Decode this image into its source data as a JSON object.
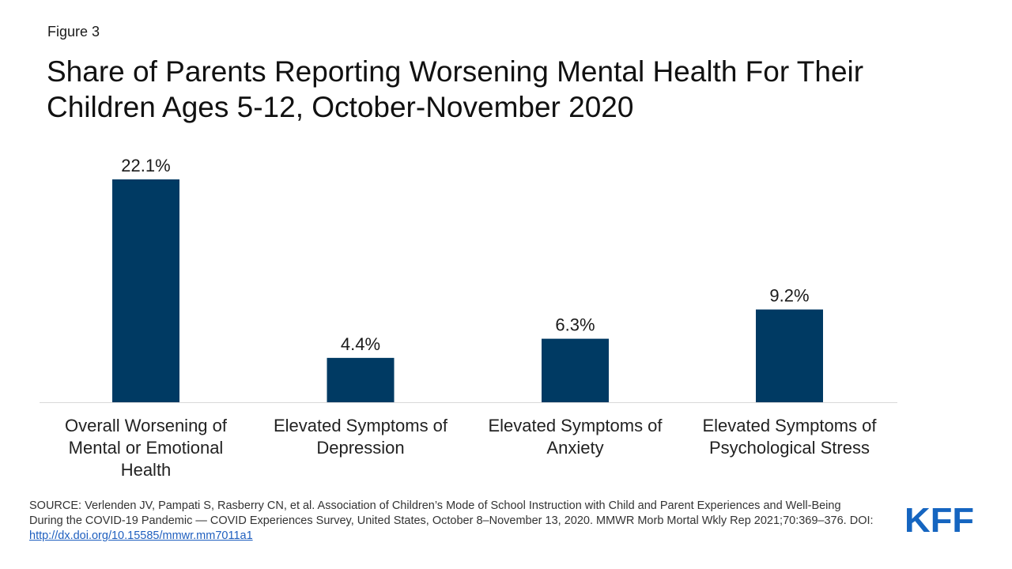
{
  "figure_label": "Figure 3",
  "title": "Share of Parents Reporting Worsening Mental Health For Their Children Ages 5-12, October-November 2020",
  "colors": {
    "bar": "#003a63",
    "axis": "#d9d9d9",
    "logo": "#1565c0",
    "link": "#1f5fbf"
  },
  "chart_data": {
    "type": "bar",
    "categories": [
      [
        "Overall Worsening of",
        "Mental or Emotional",
        "Health"
      ],
      [
        "Elevated Symptoms of",
        "Depression"
      ],
      [
        "Elevated Symptoms of",
        "Anxiety"
      ],
      [
        "Elevated Symptoms of",
        "Psychological Stress"
      ]
    ],
    "values": [
      22.1,
      4.4,
      6.3,
      9.2
    ],
    "data_labels": [
      "22.1%",
      "4.4%",
      "6.3%",
      "9.2%"
    ],
    "ylim": [
      0,
      22.1
    ],
    "grid": false,
    "legend": "none"
  },
  "source": {
    "text": "SOURCE: Verlenden JV, Pampati S, Rasberry CN, et al. Association of Children’s Mode of School Instruction  with Child and Parent Experiences and Well-Being During the COVID-19 Pandemic — COVID Experiences Survey, United States, October 8–November 13, 2020. MMWR Morb Mortal Wkly Rep 2021;70:369–376. DOI: ",
    "link_text": "http://dx.doi.org/10.15585/mmwr.mm7011a1"
  },
  "logo": {
    "text": "KFF"
  }
}
